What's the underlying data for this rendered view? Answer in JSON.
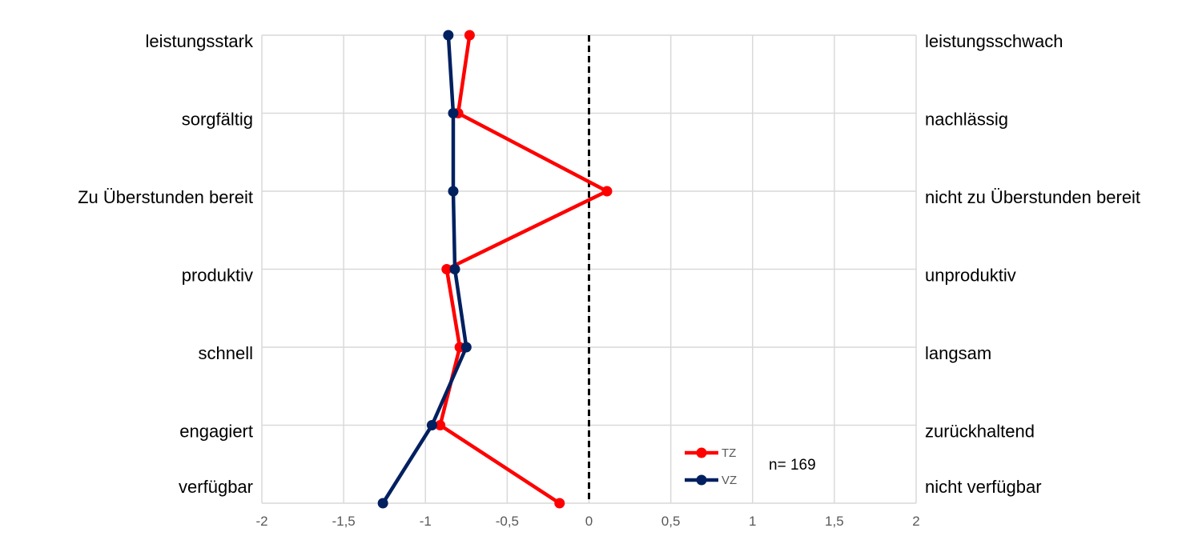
{
  "chart_data": {
    "type": "line",
    "orientation": "horizontal-profile",
    "x_ticks": [
      "-2",
      "-1,5",
      "-1",
      "-0,5",
      "0",
      "0,5",
      "1",
      "1,5",
      "2"
    ],
    "xlim": [
      -2,
      2
    ],
    "grid": true,
    "reference_line": 0,
    "left_labels": [
      "leistungsstark",
      "sorgfältig",
      "Zu Überstunden bereit",
      "produktiv",
      "schnell",
      "engagiert",
      "verfügbar"
    ],
    "right_labels": [
      "leistungsschwach",
      "nachlässig",
      "nicht zu Überstunden bereit",
      "unproduktiv",
      "langsam",
      "zurückhaltend",
      "nicht verfügbar"
    ],
    "series": [
      {
        "name": "TZ",
        "color": "#ff0000",
        "values": [
          -0.73,
          -0.8,
          0.11,
          -0.87,
          -0.79,
          -0.91,
          -0.18
        ]
      },
      {
        "name": "VZ",
        "color": "#002060",
        "values": [
          -0.86,
          -0.83,
          -0.83,
          -0.82,
          -0.75,
          -0.96,
          -1.26
        ]
      }
    ],
    "legend_position": "bottom-right",
    "note": "n= 169"
  }
}
